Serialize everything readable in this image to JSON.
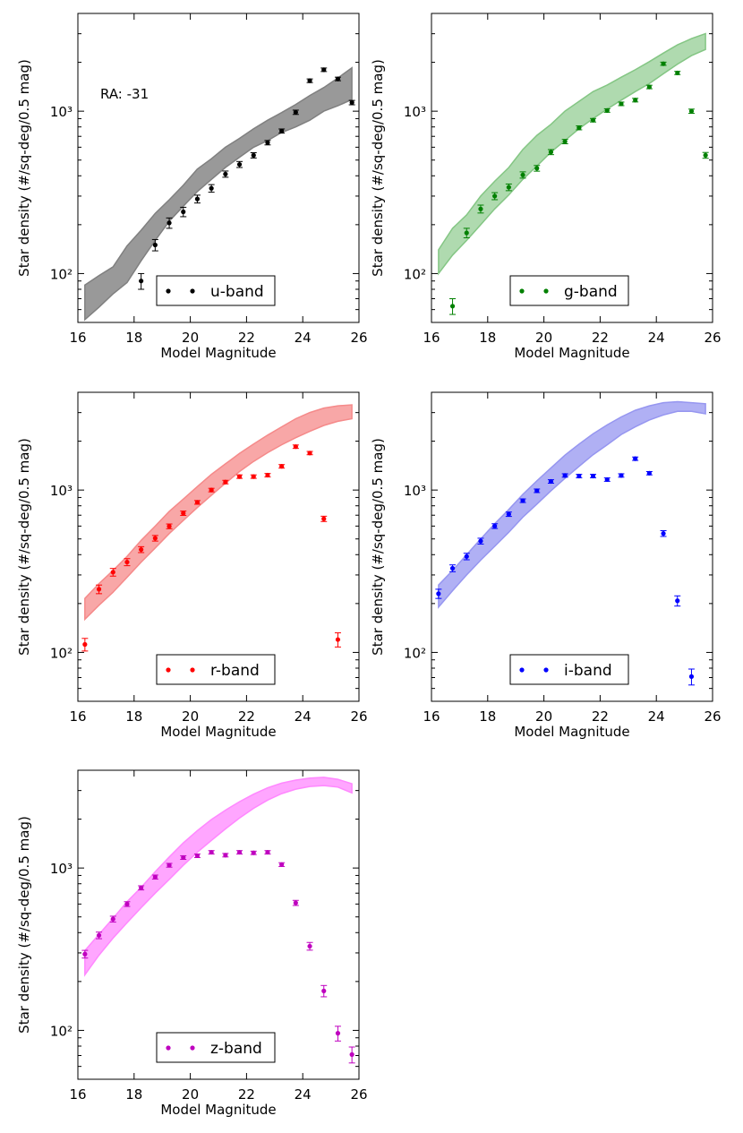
{
  "figure": {
    "title": "",
    "xlabel": "Model Magnitude",
    "ylabel": "Star density (#/sq-deg/0.5 mag)",
    "annotation": "RA: -31"
  },
  "chart_data": [
    {
      "type": "scatter",
      "band": "u",
      "legend": "u-band",
      "color": "#000000",
      "fill_color": "#808080",
      "fill_opacity": 0.8,
      "xlim": [
        16,
        26
      ],
      "ylim": [
        50,
        4000
      ],
      "yscale": "log",
      "x_ticks": [
        16,
        18,
        20,
        22,
        24,
        26
      ],
      "x_tick_labels": [
        "16",
        "18",
        "20",
        "22",
        "24",
        "26"
      ],
      "y_ticks": [
        100,
        1000
      ],
      "y_tick_labels": [
        "10²",
        "10³"
      ],
      "band_x": [
        16.25,
        16.75,
        17.25,
        17.75,
        18.25,
        18.75,
        19.25,
        19.75,
        20.25,
        20.75,
        21.25,
        21.75,
        22.25,
        22.75,
        23.25,
        23.75,
        24.25,
        24.75,
        25.25,
        25.75
      ],
      "band_lower": [
        52,
        62,
        75,
        88,
        120,
        160,
        210,
        260,
        320,
        380,
        450,
        520,
        600,
        660,
        740,
        800,
        880,
        1000,
        1080,
        1180
      ],
      "band_upper": [
        85,
        97,
        110,
        148,
        185,
        235,
        285,
        350,
        440,
        510,
        600,
        680,
        780,
        880,
        980,
        1100,
        1250,
        1400,
        1600,
        1850
      ],
      "points": [
        {
          "x": 18.25,
          "y": 90,
          "err": 10
        },
        {
          "x": 18.75,
          "y": 150,
          "err": 12
        },
        {
          "x": 19.25,
          "y": 205,
          "err": 15
        },
        {
          "x": 19.75,
          "y": 240,
          "err": 16
        },
        {
          "x": 20.25,
          "y": 288,
          "err": 16
        },
        {
          "x": 20.75,
          "y": 335,
          "err": 18
        },
        {
          "x": 21.25,
          "y": 410,
          "err": 18
        },
        {
          "x": 21.75,
          "y": 470,
          "err": 20
        },
        {
          "x": 22.25,
          "y": 535,
          "err": 20
        },
        {
          "x": 22.75,
          "y": 640,
          "err": 20
        },
        {
          "x": 23.25,
          "y": 755,
          "err": 22
        },
        {
          "x": 23.75,
          "y": 985,
          "err": 30
        },
        {
          "x": 24.25,
          "y": 1540,
          "err": 40
        },
        {
          "x": 24.75,
          "y": 1800,
          "err": 45
        },
        {
          "x": 25.25,
          "y": 1580,
          "err": 40
        },
        {
          "x": 25.75,
          "y": 1130,
          "err": 35
        }
      ]
    },
    {
      "type": "scatter",
      "band": "g",
      "legend": "g-band",
      "color": "#008000",
      "fill_color": "#84c684",
      "fill_opacity": 0.65,
      "xlim": [
        16,
        26
      ],
      "ylim": [
        50,
        4000
      ],
      "yscale": "log",
      "x_ticks": [
        16,
        18,
        20,
        22,
        24,
        26
      ],
      "x_tick_labels": [
        "16",
        "18",
        "20",
        "22",
        "24",
        "26"
      ],
      "y_ticks": [
        100,
        1000
      ],
      "y_tick_labels": [
        "10²",
        "10³"
      ],
      "band_x": [
        16.25,
        16.75,
        17.25,
        17.75,
        18.25,
        18.75,
        19.25,
        19.75,
        20.25,
        20.75,
        21.25,
        21.75,
        22.25,
        22.75,
        23.25,
        23.75,
        24.25,
        24.75,
        25.25,
        25.75
      ],
      "band_lower": [
        100,
        130,
        160,
        200,
        250,
        305,
        380,
        460,
        560,
        660,
        780,
        900,
        1030,
        1170,
        1320,
        1480,
        1700,
        1950,
        2200,
        2400
      ],
      "band_upper": [
        140,
        190,
        230,
        300,
        370,
        450,
        580,
        710,
        830,
        1000,
        1150,
        1320,
        1450,
        1620,
        1800,
        2020,
        2280,
        2560,
        2800,
        3000
      ],
      "points": [
        {
          "x": 16.75,
          "y": 63,
          "err": 7
        },
        {
          "x": 17.25,
          "y": 178,
          "err": 12
        },
        {
          "x": 17.75,
          "y": 250,
          "err": 14
        },
        {
          "x": 18.25,
          "y": 300,
          "err": 15
        },
        {
          "x": 18.75,
          "y": 340,
          "err": 16
        },
        {
          "x": 19.25,
          "y": 405,
          "err": 18
        },
        {
          "x": 19.75,
          "y": 445,
          "err": 18
        },
        {
          "x": 20.25,
          "y": 560,
          "err": 20
        },
        {
          "x": 20.75,
          "y": 650,
          "err": 20
        },
        {
          "x": 21.25,
          "y": 790,
          "err": 22
        },
        {
          "x": 21.75,
          "y": 880,
          "err": 22
        },
        {
          "x": 22.25,
          "y": 1010,
          "err": 25
        },
        {
          "x": 22.75,
          "y": 1110,
          "err": 28
        },
        {
          "x": 23.25,
          "y": 1170,
          "err": 30
        },
        {
          "x": 23.75,
          "y": 1410,
          "err": 35
        },
        {
          "x": 24.25,
          "y": 1960,
          "err": 45
        },
        {
          "x": 24.75,
          "y": 1720,
          "err": 40
        },
        {
          "x": 25.25,
          "y": 1000,
          "err": 30
        },
        {
          "x": 25.75,
          "y": 535,
          "err": 22
        }
      ]
    },
    {
      "type": "scatter",
      "band": "r",
      "legend": "r-band",
      "color": "#ff0000",
      "fill_color": "#f58a8a",
      "fill_opacity": 0.75,
      "xlim": [
        16,
        26
      ],
      "ylim": [
        50,
        4000
      ],
      "yscale": "log",
      "x_ticks": [
        16,
        18,
        20,
        22,
        24,
        26
      ],
      "x_tick_labels": [
        "16",
        "18",
        "20",
        "22",
        "24",
        "26"
      ],
      "y_ticks": [
        100,
        1000
      ],
      "y_tick_labels": [
        "10²",
        "10³"
      ],
      "band_x": [
        16.25,
        16.75,
        17.25,
        17.75,
        18.25,
        18.75,
        19.25,
        19.75,
        20.25,
        20.75,
        21.25,
        21.75,
        22.25,
        22.75,
        23.25,
        23.75,
        24.25,
        24.75,
        25.25,
        25.75
      ],
      "band_lower": [
        160,
        195,
        235,
        290,
        360,
        440,
        540,
        650,
        780,
        930,
        1100,
        1300,
        1500,
        1700,
        1900,
        2100,
        2300,
        2500,
        2650,
        2750
      ],
      "band_upper": [
        215,
        265,
        320,
        390,
        490,
        600,
        740,
        880,
        1050,
        1250,
        1450,
        1680,
        1920,
        2180,
        2450,
        2750,
        3000,
        3200,
        3300,
        3350
      ],
      "points": [
        {
          "x": 16.25,
          "y": 112,
          "err": 10
        },
        {
          "x": 16.75,
          "y": 245,
          "err": 15
        },
        {
          "x": 17.25,
          "y": 312,
          "err": 17
        },
        {
          "x": 17.75,
          "y": 360,
          "err": 18
        },
        {
          "x": 18.25,
          "y": 430,
          "err": 18
        },
        {
          "x": 18.75,
          "y": 505,
          "err": 20
        },
        {
          "x": 19.25,
          "y": 598,
          "err": 20
        },
        {
          "x": 19.75,
          "y": 720,
          "err": 22
        },
        {
          "x": 20.25,
          "y": 840,
          "err": 22
        },
        {
          "x": 20.75,
          "y": 1000,
          "err": 25
        },
        {
          "x": 21.25,
          "y": 1120,
          "err": 28
        },
        {
          "x": 21.75,
          "y": 1210,
          "err": 30
        },
        {
          "x": 22.25,
          "y": 1210,
          "err": 30
        },
        {
          "x": 22.75,
          "y": 1235,
          "err": 30
        },
        {
          "x": 23.25,
          "y": 1400,
          "err": 35
        },
        {
          "x": 23.75,
          "y": 1850,
          "err": 45
        },
        {
          "x": 24.25,
          "y": 1690,
          "err": 40
        },
        {
          "x": 24.75,
          "y": 665,
          "err": 25
        },
        {
          "x": 25.25,
          "y": 120,
          "err": 12
        }
      ]
    },
    {
      "type": "scatter",
      "band": "i",
      "legend": "i-band",
      "color": "#0000ff",
      "fill_color": "#9696f0",
      "fill_opacity": 0.75,
      "xlim": [
        16,
        26
      ],
      "ylim": [
        50,
        4000
      ],
      "yscale": "log",
      "x_ticks": [
        16,
        18,
        20,
        22,
        24,
        26
      ],
      "x_tick_labels": [
        "16",
        "18",
        "20",
        "22",
        "24",
        "26"
      ],
      "y_ticks": [
        100,
        1000
      ],
      "y_tick_labels": [
        "10²",
        "10³"
      ],
      "band_x": [
        16.25,
        16.75,
        17.25,
        17.75,
        18.25,
        18.75,
        19.25,
        19.75,
        20.25,
        20.75,
        21.25,
        21.75,
        22.25,
        22.75,
        23.25,
        23.75,
        24.25,
        24.75,
        25.25,
        25.75
      ],
      "band_lower": [
        190,
        240,
        300,
        370,
        450,
        550,
        680,
        820,
        990,
        1180,
        1400,
        1650,
        1900,
        2200,
        2450,
        2700,
        2900,
        3050,
        3050,
        2950
      ],
      "band_upper": [
        260,
        320,
        400,
        500,
        620,
        760,
        940,
        1140,
        1370,
        1640,
        1920,
        2220,
        2520,
        2820,
        3100,
        3300,
        3450,
        3500,
        3450,
        3400
      ],
      "points": [
        {
          "x": 16.25,
          "y": 230,
          "err": 15
        },
        {
          "x": 16.75,
          "y": 330,
          "err": 16
        },
        {
          "x": 17.25,
          "y": 390,
          "err": 18
        },
        {
          "x": 17.75,
          "y": 485,
          "err": 20
        },
        {
          "x": 18.25,
          "y": 600,
          "err": 20
        },
        {
          "x": 18.75,
          "y": 710,
          "err": 22
        },
        {
          "x": 19.25,
          "y": 860,
          "err": 22
        },
        {
          "x": 19.75,
          "y": 990,
          "err": 25
        },
        {
          "x": 20.25,
          "y": 1130,
          "err": 28
        },
        {
          "x": 20.75,
          "y": 1230,
          "err": 30
        },
        {
          "x": 21.25,
          "y": 1220,
          "err": 30
        },
        {
          "x": 21.75,
          "y": 1220,
          "err": 30
        },
        {
          "x": 22.25,
          "y": 1160,
          "err": 28
        },
        {
          "x": 22.75,
          "y": 1230,
          "err": 30
        },
        {
          "x": 23.25,
          "y": 1560,
          "err": 38
        },
        {
          "x": 23.75,
          "y": 1270,
          "err": 30
        },
        {
          "x": 24.25,
          "y": 540,
          "err": 22
        },
        {
          "x": 24.75,
          "y": 208,
          "err": 15
        },
        {
          "x": 25.25,
          "y": 71,
          "err": 8
        }
      ]
    },
    {
      "type": "scatter",
      "band": "z",
      "legend": "z-band",
      "color": "#bf00bf",
      "fill_color": "#ff88ff",
      "fill_opacity": 0.75,
      "xlim": [
        16,
        26
      ],
      "ylim": [
        50,
        4000
      ],
      "yscale": "log",
      "x_ticks": [
        16,
        18,
        20,
        22,
        24,
        26
      ],
      "x_tick_labels": [
        "16",
        "18",
        "20",
        "22",
        "24",
        "26"
      ],
      "y_ticks": [
        100,
        1000
      ],
      "y_tick_labels": [
        "10²",
        "10³"
      ],
      "band_x": [
        16.25,
        16.75,
        17.25,
        17.75,
        18.25,
        18.75,
        19.25,
        19.75,
        20.25,
        20.75,
        21.25,
        21.75,
        22.25,
        22.75,
        23.25,
        23.75,
        24.25,
        24.75,
        25.25,
        25.75
      ],
      "band_lower": [
        220,
        290,
        370,
        460,
        570,
        700,
        850,
        1040,
        1250,
        1480,
        1740,
        2030,
        2330,
        2620,
        2870,
        3060,
        3180,
        3220,
        3150,
        2900
      ],
      "band_upper": [
        310,
        390,
        490,
        620,
        760,
        950,
        1170,
        1430,
        1700,
        1990,
        2270,
        2560,
        2850,
        3120,
        3330,
        3480,
        3580,
        3620,
        3520,
        3300
      ],
      "points": [
        {
          "x": 16.25,
          "y": 295,
          "err": 16
        },
        {
          "x": 16.75,
          "y": 385,
          "err": 18
        },
        {
          "x": 17.25,
          "y": 485,
          "err": 20
        },
        {
          "x": 17.75,
          "y": 600,
          "err": 20
        },
        {
          "x": 18.25,
          "y": 755,
          "err": 22
        },
        {
          "x": 18.75,
          "y": 880,
          "err": 25
        },
        {
          "x": 19.25,
          "y": 1040,
          "err": 28
        },
        {
          "x": 19.75,
          "y": 1160,
          "err": 30
        },
        {
          "x": 20.25,
          "y": 1190,
          "err": 30
        },
        {
          "x": 20.75,
          "y": 1250,
          "err": 30
        },
        {
          "x": 21.25,
          "y": 1200,
          "err": 30
        },
        {
          "x": 21.75,
          "y": 1250,
          "err": 30
        },
        {
          "x": 22.25,
          "y": 1240,
          "err": 30
        },
        {
          "x": 22.75,
          "y": 1250,
          "err": 30
        },
        {
          "x": 23.25,
          "y": 1050,
          "err": 28
        },
        {
          "x": 23.75,
          "y": 610,
          "err": 22
        },
        {
          "x": 24.25,
          "y": 330,
          "err": 18
        },
        {
          "x": 24.75,
          "y": 175,
          "err": 14
        },
        {
          "x": 25.25,
          "y": 96,
          "err": 10
        },
        {
          "x": 25.75,
          "y": 71,
          "err": 8
        }
      ]
    }
  ]
}
